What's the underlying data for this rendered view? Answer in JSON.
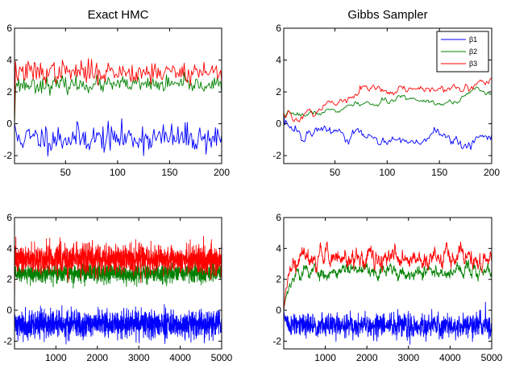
{
  "figure": {
    "colors": {
      "beta1": "#0000ff",
      "beta2": "#008000",
      "beta3": "#ff0000",
      "axes": "#000000"
    }
  },
  "chart_data": [
    {
      "type": "line",
      "title": "Exact HMC",
      "xlim": [
        1,
        200
      ],
      "ylim": [
        -2.5,
        6
      ],
      "xticks": [
        50,
        100,
        150,
        200
      ],
      "yticks": [
        -2,
        0,
        2,
        4,
        6
      ],
      "n_points": 200,
      "grid": false,
      "series": [
        {
          "key": "beta1",
          "color": "#0000ff",
          "start": 0.0,
          "mean": -0.9,
          "spread": 0.45,
          "noise": "iid",
          "seed": 11
        },
        {
          "key": "beta2",
          "color": "#008000",
          "start": 0.0,
          "mean": 2.45,
          "spread": 0.25,
          "noise": "iid",
          "seed": 23
        },
        {
          "key": "beta3",
          "color": "#ff0000",
          "start": 0.0,
          "mean": 3.25,
          "spread": 0.35,
          "noise": "iid",
          "seed": 37
        }
      ]
    },
    {
      "type": "line",
      "title": "Gibbs Sampler",
      "xlim": [
        1,
        200
      ],
      "ylim": [
        -2.5,
        6
      ],
      "xticks": [
        50,
        100,
        150,
        200
      ],
      "yticks": [
        -2,
        0,
        2,
        4,
        6
      ],
      "n_points": 200,
      "grid": false,
      "legend": {
        "position": "top-right",
        "entries": [
          "β1",
          "β2",
          "β3"
        ]
      },
      "series": [
        {
          "key": "beta1",
          "color": "#0000ff",
          "start": 0.7,
          "trend_start": 0.0,
          "trend_end": -1.1,
          "spread": 0.25,
          "noise": "walk",
          "seed": 5
        },
        {
          "key": "beta2",
          "color": "#008000",
          "start": 0.7,
          "trend_start": 0.2,
          "trend_end": 2.1,
          "spread": 0.08,
          "noise": "smooth",
          "seed": 7
        },
        {
          "key": "beta3",
          "color": "#ff0000",
          "start": 0.7,
          "trend_start": 0.25,
          "trend_end": 2.8,
          "spread": 0.12,
          "noise": "smooth",
          "seed": 9
        }
      ]
    },
    {
      "type": "line",
      "title": "",
      "xlim": [
        1,
        5000
      ],
      "ylim": [
        -2.5,
        6
      ],
      "xticks": [
        1000,
        2000,
        3000,
        4000,
        5000
      ],
      "yticks": [
        -2,
        0,
        2,
        4,
        6
      ],
      "n_points": 1500,
      "grid": false,
      "series": [
        {
          "key": "beta1",
          "color": "#0000ff",
          "start": 0.0,
          "mean": -0.9,
          "spread": 0.45,
          "noise": "iid",
          "seed": 41
        },
        {
          "key": "beta2",
          "color": "#008000",
          "start": 0.0,
          "mean": 2.4,
          "spread": 0.3,
          "noise": "iid",
          "seed": 43
        },
        {
          "key": "beta3",
          "color": "#ff0000",
          "start": 0.0,
          "mean": 3.3,
          "spread": 0.45,
          "noise": "iid",
          "seed": 47
        }
      ]
    },
    {
      "type": "line",
      "title": "",
      "xlim": [
        1,
        5000
      ],
      "ylim": [
        -2.5,
        6
      ],
      "xticks": [
        1000,
        2000,
        3000,
        4000,
        5000
      ],
      "yticks": [
        -2,
        0,
        2,
        4,
        6
      ],
      "n_points": 900,
      "grid": false,
      "series": [
        {
          "key": "beta1",
          "color": "#0000ff",
          "start": 0.0,
          "mean": -1.0,
          "spread": 0.4,
          "noise": "iid",
          "seed": 51,
          "burn_in": 0.04
        },
        {
          "key": "beta2",
          "color": "#008000",
          "start": 0.0,
          "mean": 2.5,
          "spread": 0.25,
          "noise": "ar",
          "seed": 53,
          "burn_in": 0.1
        },
        {
          "key": "beta3",
          "color": "#ff0000",
          "start": 0.0,
          "mean": 3.3,
          "spread": 0.35,
          "noise": "ar",
          "seed": 57,
          "burn_in": 0.1
        }
      ]
    }
  ]
}
